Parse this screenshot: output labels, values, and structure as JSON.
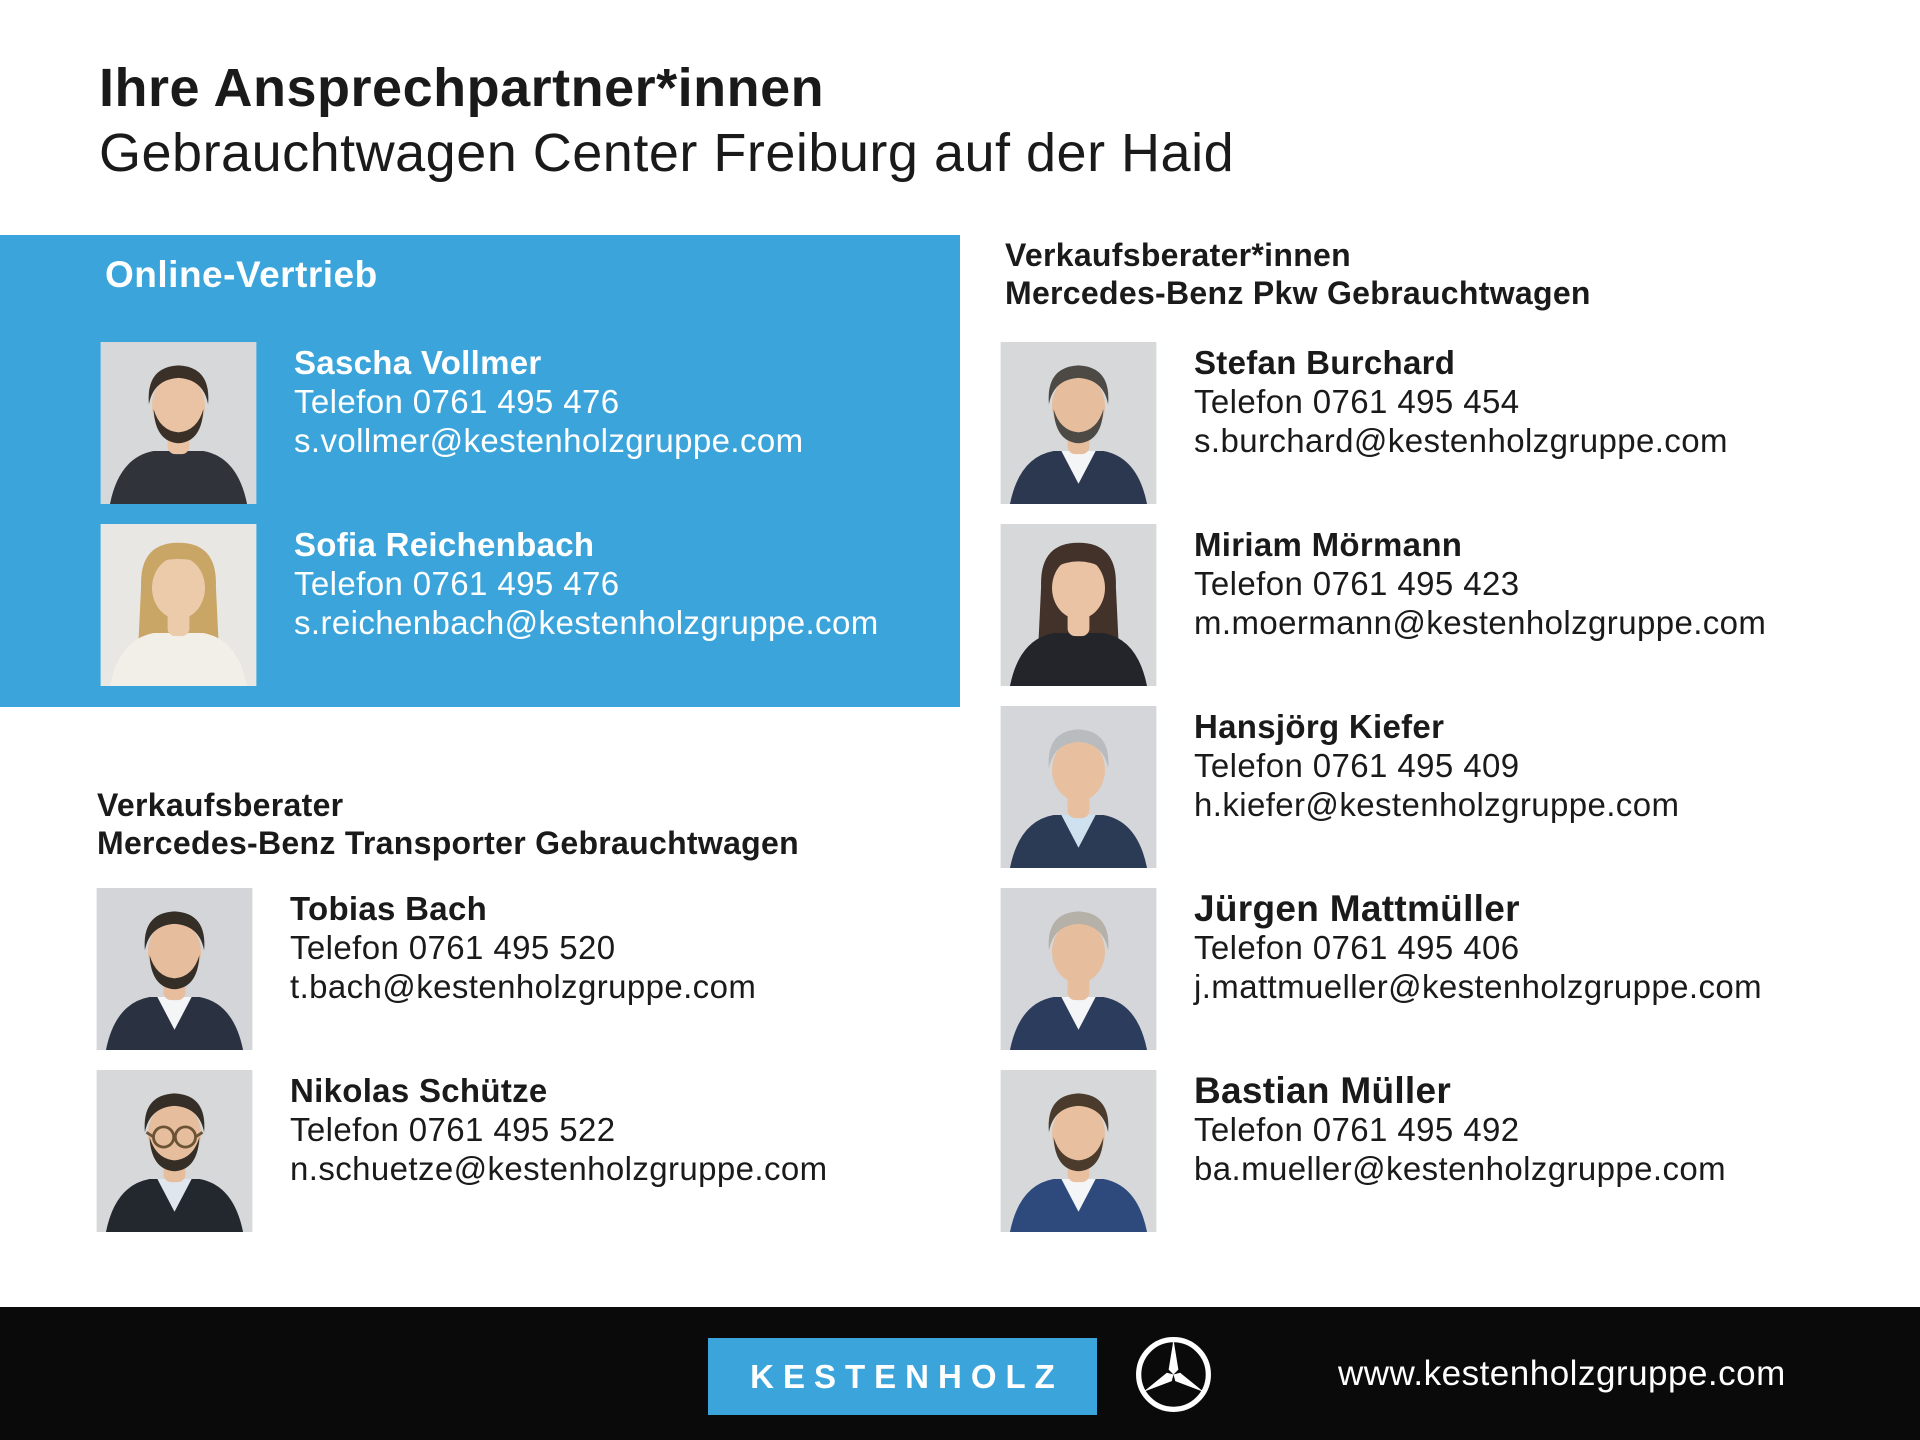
{
  "page": {
    "title_line1": "Ihre Ansprechpartner*innen",
    "title_line2": "Gebrauchtwagen Center Freiburg auf der Haid"
  },
  "colors": {
    "brand_blue": "#3BA5DB",
    "footer_black": "#0A0A0A",
    "text_dark": "#1A1A1A"
  },
  "sections": {
    "online": {
      "heading": "Online-Vertrieb",
      "people": [
        {
          "name": "Sascha Vollmer",
          "phone": "Telefon 0761 495 476",
          "email": "s.vollmer@kestenholzgruppe.com",
          "avatar": {
            "bg": "#d6d8da",
            "skin": "#e9c3a3",
            "hair": "#3a3028",
            "top": "#30343a",
            "shirt": null,
            "facial": "beard",
            "hairstyle": "short",
            "glasses": false
          }
        },
        {
          "name": "Sofia Reichenbach",
          "phone": "Telefon 0761 495 476",
          "email": "s.reichenbach@kestenholzgruppe.com",
          "avatar": {
            "bg": "#e9e7e3",
            "skin": "#eccbab",
            "hair": "#c9a566",
            "top": "#f2efe9",
            "shirt": null,
            "facial": null,
            "hairstyle": "long",
            "glasses": false
          }
        }
      ]
    },
    "pkw": {
      "heading_line1": "Verkaufsberater*innen",
      "heading_line2": "Mercedes-Benz Pkw Gebrauchtwagen",
      "people": [
        {
          "name": "Stefan Burchard",
          "phone": "Telefon 0761 495 454",
          "email": "s.burchard@kestenholzgruppe.com",
          "avatar": {
            "bg": "#d6d8da",
            "skin": "#e6bd9d",
            "hair": "#4d4a46",
            "top": "#2c3850",
            "shirt": "#f4f5f7",
            "facial": "beard",
            "hairstyle": "short",
            "glasses": false
          }
        },
        {
          "name": "Miriam Mörmann",
          "phone": "Telefon 0761 495 423",
          "email": "m.moermann@kestenholzgruppe.com",
          "avatar": {
            "bg": "#d6d8da",
            "skin": "#e9c3a3",
            "hair": "#43322a",
            "top": "#23252a",
            "shirt": null,
            "facial": null,
            "hairstyle": "bangs",
            "glasses": false
          }
        },
        {
          "name": "Hansjörg Kiefer",
          "phone": "Telefon 0761 495 409",
          "email": "h.kiefer@kestenholzgruppe.com",
          "avatar": {
            "bg": "#d4d6d9",
            "skin": "#e8c0a0",
            "hair": "#b9bcbe",
            "top": "#2b3a55",
            "shirt": "#cfe0ef",
            "facial": null,
            "hairstyle": "short",
            "glasses": false
          }
        },
        {
          "name": "Jürgen Mattmüller",
          "phone": "Telefon 0761 495 406",
          "email": "j.mattmueller@kestenholzgruppe.com",
          "avatar": {
            "bg": "#d4d6d9",
            "skin": "#e6bd9d",
            "hair": "#b5b0a8",
            "top": "#2c3c5c",
            "shirt": "#f4f5f7",
            "facial": null,
            "hairstyle": "short",
            "glasses": false
          }
        },
        {
          "name": "Bastian Müller",
          "phone": "Telefon 0761 495 492",
          "email": "ba.mueller@kestenholzgruppe.com",
          "avatar": {
            "bg": "#d6d8da",
            "skin": "#e8c0a0",
            "hair": "#4a3b2d",
            "top": "#2e4a7c",
            "shirt": "#f4f5f7",
            "facial": "beard",
            "hairstyle": "short",
            "glasses": false
          }
        }
      ]
    },
    "transporter": {
      "heading_line1": "Verkaufsberater",
      "heading_line2": "Mercedes-Benz Transporter Gebrauchtwagen",
      "people": [
        {
          "name": "Tobias Bach",
          "phone": "Telefon 0761 495 520",
          "email": "t.bach@kestenholzgruppe.com",
          "avatar": {
            "bg": "#d3d5d8",
            "skin": "#e6bd9d",
            "hair": "#352e26",
            "top": "#2a3140",
            "shirt": "#f4f5f7",
            "facial": "beard",
            "hairstyle": "short",
            "glasses": false
          }
        },
        {
          "name": "Nikolas Schütze",
          "phone": "Telefon 0761 495 522",
          "email": "n.schuetze@kestenholzgruppe.com",
          "avatar": {
            "bg": "#d6d8da",
            "skin": "#e6bd9d",
            "hair": "#352e26",
            "top": "#23272e",
            "shirt": "#dfe6ee",
            "facial": "beard",
            "hairstyle": "short",
            "glasses": true
          }
        }
      ]
    }
  },
  "footer": {
    "logo_text": "KESTENHOLZ",
    "brand_icon": "mercedes-benz-star-icon",
    "website": "www.kestenholzgruppe.com"
  }
}
